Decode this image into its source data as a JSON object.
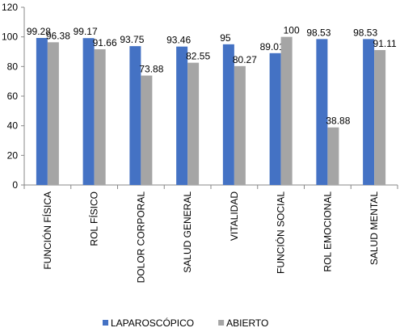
{
  "chart_data": {
    "type": "bar",
    "categories": [
      "FUNCIÓN FÍSICA",
      "ROL FÍSICO",
      "DOLOR CORPORAL",
      "SALUD GENERAL",
      "VITALIDAD",
      "FUNCIÓN SOCIAL",
      "ROL EMOCIONAL",
      "SALUD MENTAL"
    ],
    "series": [
      {
        "name": "LAPAROSCÓPICO",
        "color": "#4472c4",
        "values": [
          99.28,
          99.17,
          93.75,
          93.46,
          95,
          89.01,
          98.53,
          98.53
        ]
      },
      {
        "name": "ABIERTO",
        "color": "#a5a5a5",
        "values": [
          96.38,
          91.66,
          73.88,
          82.55,
          80.27,
          100,
          38.88,
          91.11
        ]
      }
    ],
    "ylim": [
      0,
      120
    ],
    "yticks": [
      0,
      20,
      40,
      60,
      80,
      100,
      120
    ],
    "grid": false,
    "legend": "bottom"
  }
}
